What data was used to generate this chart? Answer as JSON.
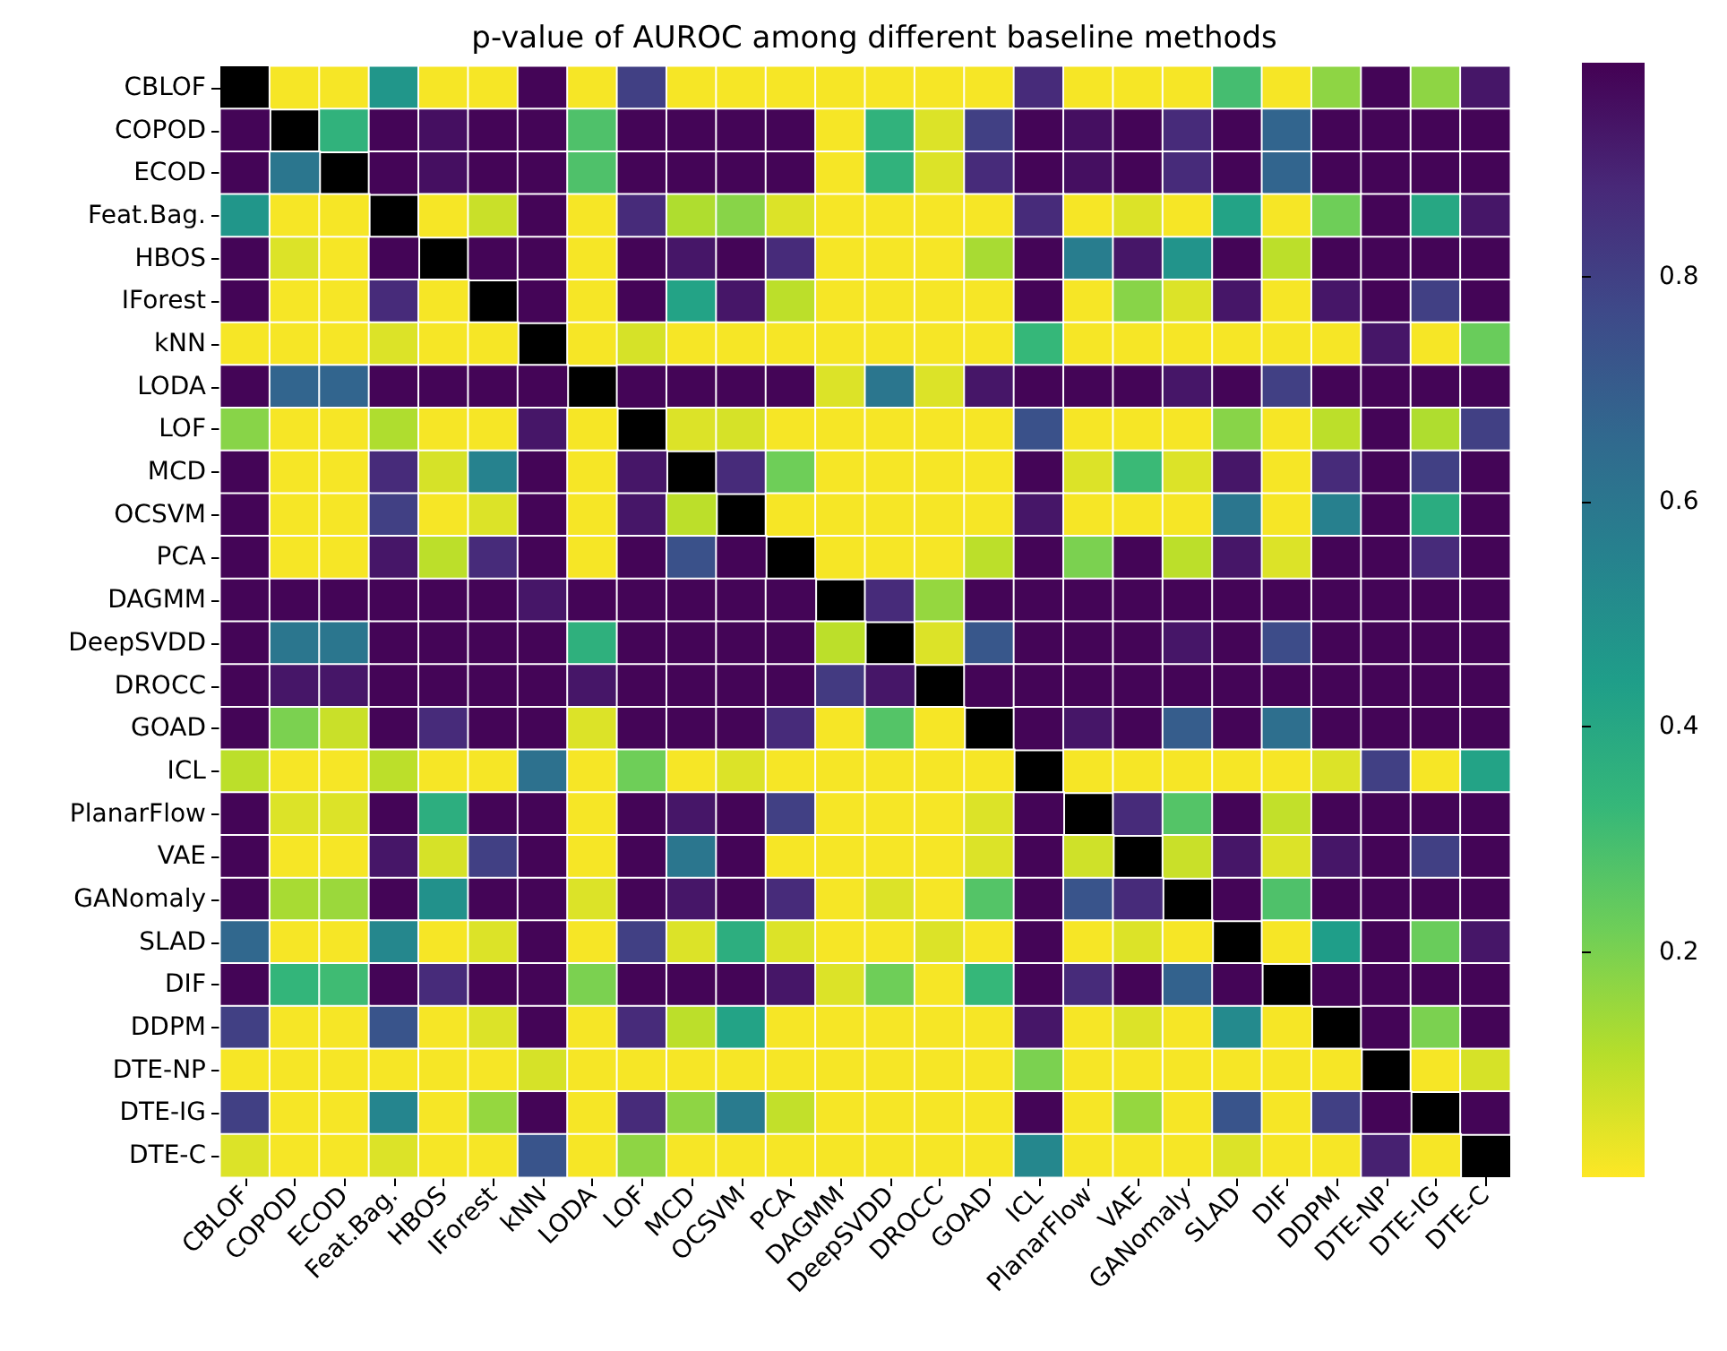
{
  "chart_data": {
    "type": "heatmap",
    "title": "p-value of AUROC among different baseline methods",
    "categories": [
      "CBLOF",
      "COPOD",
      "ECOD",
      "Feat.Bag.",
      "HBOS",
      "IForest",
      "kNN",
      "LODA",
      "LOF",
      "MCD",
      "OCSVM",
      "PCA",
      "DAGMM",
      "DeepSVDD",
      "DROCC",
      "GOAD",
      "ICL",
      "PlanarFlow",
      "VAE",
      "GANomaly",
      "SLAD",
      "DIF",
      "DDPM",
      "DTE-NP",
      "DTE-IG",
      "DTE-C"
    ],
    "y_categories": [
      "CBLOF",
      "COPOD",
      "ECOD",
      "Feat.Bag.",
      "HBOS",
      "IForest",
      "kNN",
      "LODA",
      "LOF",
      "MCD",
      "OCSVM",
      "PCA",
      "DAGMM",
      "DeepSVDD",
      "DROCC",
      "GOAD",
      "ICL",
      "PlanarFlow",
      "VAE",
      "GANomaly",
      "SLAD",
      "DIF",
      "DDPM",
      "DTE-NP",
      "DTE-IG",
      "DTE-C"
    ],
    "cells": [
      [
        null,
        0.01,
        0.01,
        0.47,
        0.01,
        0.01,
        0.98,
        0.01,
        0.8,
        0.01,
        0.01,
        0.01,
        0.01,
        0.01,
        0.01,
        0.01,
        0.87,
        0.01,
        0.01,
        0.01,
        0.3,
        0.01,
        0.17,
        0.98,
        0.17,
        0.93
      ],
      [
        0.98,
        null,
        0.35,
        0.98,
        0.95,
        0.98,
        0.98,
        0.28,
        0.98,
        0.98,
        0.98,
        0.98,
        0.01,
        0.35,
        0.05,
        0.8,
        0.98,
        0.95,
        0.98,
        0.87,
        0.98,
        0.67,
        0.98,
        0.98,
        0.98,
        0.98
      ],
      [
        0.98,
        0.6,
        null,
        0.98,
        0.95,
        0.98,
        0.98,
        0.28,
        0.98,
        0.98,
        0.98,
        0.98,
        0.01,
        0.35,
        0.05,
        0.87,
        0.98,
        0.95,
        0.98,
        0.87,
        0.98,
        0.67,
        0.98,
        0.98,
        0.98,
        0.98
      ],
      [
        0.47,
        0.01,
        0.01,
        null,
        0.01,
        0.08,
        0.98,
        0.01,
        0.87,
        0.12,
        0.18,
        0.05,
        0.01,
        0.01,
        0.01,
        0.01,
        0.87,
        0.01,
        0.05,
        0.01,
        0.42,
        0.01,
        0.22,
        0.98,
        0.4,
        0.93
      ],
      [
        0.98,
        0.05,
        0.01,
        0.98,
        null,
        0.98,
        0.98,
        0.01,
        0.98,
        0.93,
        0.98,
        0.87,
        0.01,
        0.01,
        0.01,
        0.13,
        0.98,
        0.57,
        0.93,
        0.48,
        0.98,
        0.1,
        0.98,
        0.98,
        0.98,
        0.98
      ],
      [
        0.98,
        0.01,
        0.01,
        0.87,
        0.01,
        null,
        0.98,
        0.01,
        0.98,
        0.42,
        0.93,
        0.1,
        0.01,
        0.01,
        0.01,
        0.01,
        0.98,
        0.01,
        0.18,
        0.05,
        0.93,
        0.01,
        0.93,
        0.98,
        0.8,
        0.98
      ],
      [
        0.01,
        0.01,
        0.01,
        0.05,
        0.01,
        0.01,
        null,
        0.01,
        0.06,
        0.01,
        0.01,
        0.01,
        0.01,
        0.01,
        0.01,
        0.01,
        0.33,
        0.01,
        0.01,
        0.01,
        0.01,
        0.01,
        0.01,
        0.93,
        0.01,
        0.23
      ],
      [
        0.98,
        0.67,
        0.67,
        0.98,
        0.98,
        0.98,
        0.98,
        null,
        0.98,
        0.98,
        0.98,
        0.98,
        0.05,
        0.6,
        0.05,
        0.93,
        0.98,
        0.98,
        0.98,
        0.93,
        0.98,
        0.8,
        0.98,
        0.98,
        0.98,
        0.98
      ],
      [
        0.18,
        0.01,
        0.01,
        0.12,
        0.01,
        0.01,
        0.93,
        0.01,
        null,
        0.05,
        0.06,
        0.01,
        0.01,
        0.01,
        0.01,
        0.01,
        0.74,
        0.01,
        0.01,
        0.01,
        0.18,
        0.01,
        0.1,
        0.98,
        0.12,
        0.8
      ],
      [
        0.98,
        0.01,
        0.01,
        0.87,
        0.06,
        0.55,
        0.98,
        0.01,
        0.93,
        null,
        0.87,
        0.22,
        0.01,
        0.01,
        0.01,
        0.01,
        0.98,
        0.05,
        0.32,
        0.05,
        0.93,
        0.01,
        0.87,
        0.98,
        0.8,
        0.98
      ],
      [
        0.98,
        0.01,
        0.01,
        0.8,
        0.01,
        0.05,
        0.98,
        0.01,
        0.93,
        0.1,
        null,
        0.01,
        0.01,
        0.01,
        0.01,
        0.01,
        0.93,
        0.01,
        0.01,
        0.01,
        0.6,
        0.01,
        0.56,
        0.98,
        0.38,
        0.98
      ],
      [
        0.98,
        0.01,
        0.01,
        0.93,
        0.1,
        0.87,
        0.98,
        0.01,
        0.98,
        0.74,
        0.98,
        null,
        0.01,
        0.01,
        0.01,
        0.1,
        0.98,
        0.2,
        0.98,
        0.1,
        0.93,
        0.05,
        0.98,
        0.98,
        0.87,
        0.98
      ],
      [
        0.98,
        0.98,
        0.98,
        0.98,
        0.98,
        0.98,
        0.93,
        0.98,
        0.98,
        0.98,
        0.98,
        0.98,
        null,
        0.87,
        0.16,
        0.98,
        0.98,
        0.98,
        0.98,
        0.98,
        0.98,
        0.98,
        0.98,
        0.98,
        0.98,
        0.98
      ],
      [
        0.98,
        0.6,
        0.6,
        0.98,
        0.98,
        0.98,
        0.98,
        0.36,
        0.98,
        0.98,
        0.98,
        0.98,
        0.1,
        null,
        0.05,
        0.72,
        0.98,
        0.98,
        0.98,
        0.93,
        0.98,
        0.76,
        0.98,
        0.98,
        0.98,
        0.98
      ],
      [
        0.98,
        0.93,
        0.93,
        0.98,
        0.98,
        0.98,
        0.98,
        0.93,
        0.98,
        0.98,
        0.98,
        0.98,
        0.82,
        0.93,
        null,
        0.98,
        0.98,
        0.98,
        0.98,
        0.98,
        0.98,
        0.98,
        0.98,
        0.98,
        0.98,
        0.98
      ],
      [
        0.98,
        0.2,
        0.08,
        0.98,
        0.87,
        0.98,
        0.98,
        0.05,
        0.98,
        0.98,
        0.98,
        0.87,
        0.01,
        0.27,
        0.01,
        null,
        0.98,
        0.93,
        0.98,
        0.7,
        0.98,
        0.63,
        0.98,
        0.98,
        0.98,
        0.98
      ],
      [
        0.1,
        0.01,
        0.01,
        0.1,
        0.01,
        0.01,
        0.62,
        0.01,
        0.22,
        0.01,
        0.05,
        0.01,
        0.01,
        0.01,
        0.01,
        0.01,
        null,
        0.01,
        0.01,
        0.01,
        0.01,
        0.01,
        0.05,
        0.8,
        0.01,
        0.42
      ],
      [
        0.98,
        0.05,
        0.05,
        0.98,
        0.37,
        0.98,
        0.98,
        0.01,
        0.98,
        0.93,
        0.98,
        0.8,
        0.01,
        0.01,
        0.01,
        0.05,
        0.98,
        null,
        0.87,
        0.27,
        0.98,
        0.09,
        0.98,
        0.98,
        0.98,
        0.98
      ],
      [
        0.98,
        0.01,
        0.01,
        0.93,
        0.06,
        0.8,
        0.98,
        0.01,
        0.98,
        0.6,
        0.98,
        0.01,
        0.01,
        0.01,
        0.01,
        0.05,
        0.98,
        0.07,
        null,
        0.08,
        0.93,
        0.05,
        0.93,
        0.98,
        0.8,
        0.98
      ],
      [
        0.98,
        0.13,
        0.15,
        0.98,
        0.49,
        0.98,
        0.98,
        0.05,
        0.98,
        0.93,
        0.98,
        0.87,
        0.01,
        0.05,
        0.01,
        0.27,
        0.98,
        0.73,
        0.87,
        null,
        0.98,
        0.28,
        0.98,
        0.98,
        0.98,
        0.98
      ],
      [
        0.66,
        0.01,
        0.01,
        0.53,
        0.01,
        0.05,
        0.98,
        0.01,
        0.8,
        0.05,
        0.37,
        0.05,
        0.01,
        0.01,
        0.05,
        0.01,
        0.98,
        0.01,
        0.05,
        0.01,
        null,
        0.01,
        0.44,
        0.98,
        0.23,
        0.93
      ],
      [
        0.98,
        0.34,
        0.31,
        0.98,
        0.87,
        0.98,
        0.98,
        0.2,
        0.98,
        0.98,
        0.98,
        0.93,
        0.05,
        0.22,
        0.01,
        0.33,
        0.98,
        0.87,
        0.98,
        0.68,
        0.98,
        null,
        0.98,
        0.98,
        0.98,
        0.98
      ],
      [
        0.8,
        0.01,
        0.01,
        0.73,
        0.01,
        0.05,
        0.98,
        0.01,
        0.87,
        0.1,
        0.42,
        0.01,
        0.01,
        0.01,
        0.01,
        0.01,
        0.93,
        0.01,
        0.05,
        0.01,
        0.52,
        0.01,
        null,
        0.98,
        0.2,
        0.98
      ],
      [
        0.01,
        0.01,
        0.01,
        0.01,
        0.01,
        0.01,
        0.06,
        0.01,
        0.01,
        0.01,
        0.01,
        0.01,
        0.01,
        0.01,
        0.01,
        0.01,
        0.2,
        0.01,
        0.01,
        0.01,
        0.01,
        0.01,
        0.01,
        null,
        0.01,
        0.06
      ],
      [
        0.8,
        0.01,
        0.01,
        0.54,
        0.01,
        0.16,
        0.98,
        0.01,
        0.87,
        0.17,
        0.58,
        0.09,
        0.01,
        0.01,
        0.01,
        0.01,
        0.98,
        0.01,
        0.16,
        0.01,
        0.73,
        0.01,
        0.8,
        0.98,
        null,
        0.98
      ],
      [
        0.05,
        0.01,
        0.01,
        0.05,
        0.01,
        0.01,
        0.73,
        0.01,
        0.17,
        0.01,
        0.01,
        0.01,
        0.01,
        0.01,
        0.01,
        0.01,
        0.53,
        0.01,
        0.01,
        0.01,
        0.05,
        0.01,
        0.01,
        0.9,
        0.01,
        null
      ]
    ],
    "clim": [
      0,
      0.99
    ],
    "cticks": [
      0.2,
      0.4,
      0.6,
      0.8
    ]
  }
}
